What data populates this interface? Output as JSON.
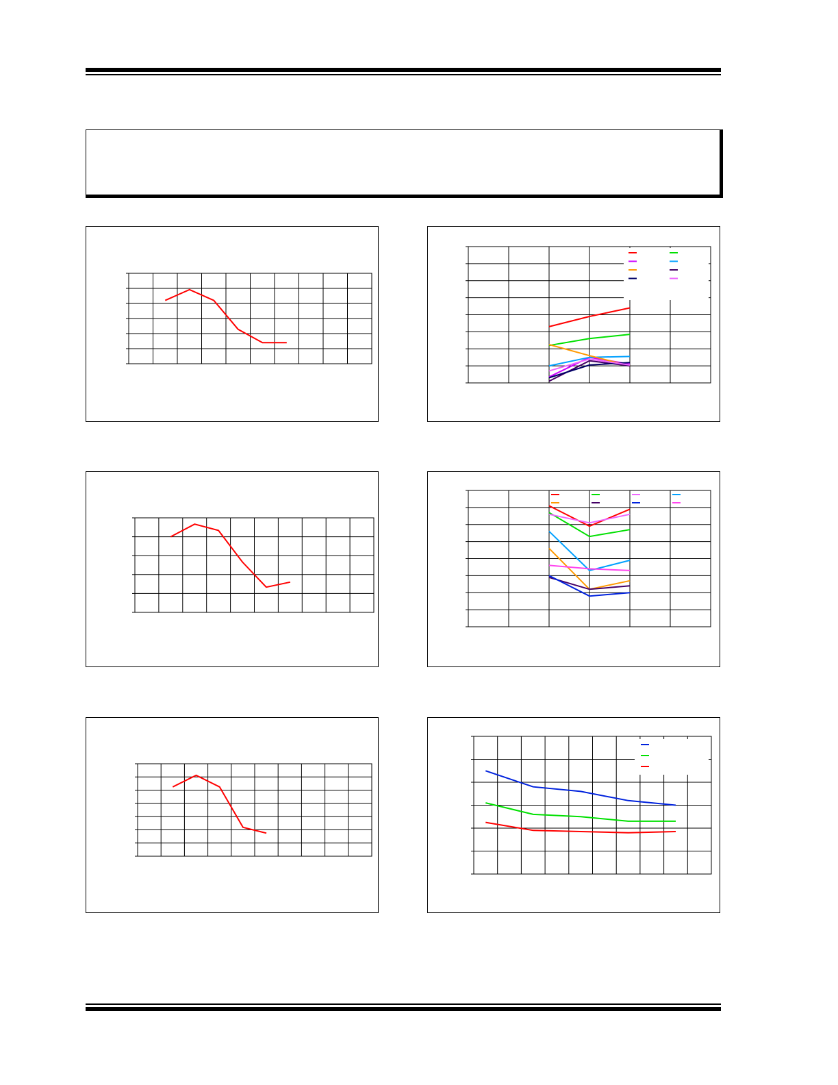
{
  "colors": {
    "red": "#ff0000",
    "green": "#00e000",
    "magenta": "#cc00ff",
    "sky": "#00a0ff",
    "orange": "#ff9900",
    "darkpurple": "#440066",
    "navy": "#000066",
    "pink": "#ff44ee",
    "lightmagenta": "#ee66ff",
    "blue": "#0022dd",
    "grid": "#000000"
  },
  "chart_data": [
    {
      "type": "line",
      "x": [
        1,
        2,
        3,
        4,
        5,
        6,
        7,
        8,
        9,
        10
      ],
      "series": [
        {
          "values": [
            null,
            0.8,
            0.98,
            0.8,
            0.32,
            0.1,
            0.1,
            null,
            null,
            null
          ],
          "color": "red"
        }
      ],
      "ylim": [
        -0.25,
        1.25
      ],
      "grid": true
    },
    {
      "type": "line",
      "x": [
        1,
        2,
        3,
        4,
        5,
        6
      ],
      "series": [
        {
          "values": [
            null,
            3.3,
            3.9,
            4.4,
            null,
            null
          ],
          "color": "red"
        },
        {
          "values": [
            null,
            2.2,
            2.6,
            2.85,
            null,
            null
          ],
          "color": "green"
        },
        {
          "values": [
            null,
            0.35,
            1.5,
            1.1,
            null,
            null
          ],
          "color": "magenta"
        },
        {
          "values": [
            null,
            1.0,
            1.5,
            1.55,
            null,
            null
          ],
          "color": "sky"
        },
        {
          "values": [
            null,
            2.25,
            1.6,
            1.0,
            null,
            null
          ],
          "color": "orange"
        },
        {
          "values": [
            null,
            0.1,
            1.3,
            1.0,
            null,
            null
          ],
          "color": "darkpurple"
        },
        {
          "values": [
            null,
            0.3,
            1.05,
            1.2,
            null,
            null
          ],
          "color": "navy"
        },
        {
          "values": [
            null,
            0.7,
            1.4,
            1.05,
            null,
            null
          ],
          "color": "lightmagenta"
        }
      ],
      "ylim": [
        0,
        8
      ],
      "grid": true,
      "legend_position": "top-right"
    },
    {
      "type": "line",
      "x": [
        1,
        2,
        3,
        4,
        5,
        6,
        7,
        8,
        9,
        10
      ],
      "series": [
        {
          "values": [
            null,
            0.9,
            1.1,
            1.0,
            0.5,
            0.1,
            0.18,
            null,
            null,
            null
          ],
          "color": "red"
        }
      ],
      "ylim": [
        -0.3,
        1.2
      ],
      "grid": true
    },
    {
      "type": "line",
      "x": [
        1,
        2,
        3,
        4,
        5,
        6
      ],
      "series": [
        {
          "values": [
            null,
            7.1,
            5.9,
            6.9,
            null,
            null
          ],
          "color": "red"
        },
        {
          "values": [
            null,
            6.7,
            5.3,
            5.7,
            null,
            null
          ],
          "color": "green"
        },
        {
          "values": [
            null,
            6.6,
            6.1,
            6.6,
            null,
            null
          ],
          "color": "lightmagenta"
        },
        {
          "values": [
            null,
            5.6,
            3.3,
            3.9,
            null,
            null
          ],
          "color": "sky"
        },
        {
          "values": [
            null,
            4.6,
            2.2,
            2.7,
            null,
            null
          ],
          "color": "orange"
        },
        {
          "values": [
            null,
            2.9,
            2.2,
            2.4,
            null,
            null
          ],
          "color": "darkpurple"
        },
        {
          "values": [
            null,
            3.0,
            1.8,
            2.0,
            null,
            null
          ],
          "color": "blue"
        },
        {
          "values": [
            null,
            3.6,
            3.4,
            3.3,
            null,
            null
          ],
          "color": "pink"
        }
      ],
      "ylim": [
        0,
        8
      ],
      "grid": true,
      "legend_position": "top"
    },
    {
      "type": "line",
      "x": [
        1,
        2,
        3,
        4,
        5,
        6,
        7,
        8,
        9,
        10
      ],
      "series": [
        {
          "values": [
            null,
            1.0,
            1.2,
            1.0,
            0.3,
            0.2,
            null,
            null,
            null,
            null
          ],
          "color": "red"
        }
      ],
      "ylim": [
        -0.2,
        1.4
      ],
      "grid": true
    },
    {
      "type": "line",
      "x": [
        1,
        2,
        3,
        4,
        5,
        6,
        7,
        8,
        9,
        10
      ],
      "series": [
        {
          "values": [
            4.5,
            null,
            3.8,
            null,
            3.6,
            null,
            3.2,
            null,
            3.0,
            null
          ],
          "color": "blue"
        },
        {
          "values": [
            3.1,
            null,
            2.6,
            null,
            2.5,
            null,
            2.3,
            null,
            2.3,
            null
          ],
          "color": "green"
        },
        {
          "values": [
            2.25,
            null,
            1.9,
            null,
            1.85,
            null,
            1.8,
            null,
            1.85,
            null
          ],
          "color": "red"
        }
      ],
      "ylim": [
        0,
        6
      ],
      "grid": true,
      "legend_position": "top-right"
    }
  ]
}
